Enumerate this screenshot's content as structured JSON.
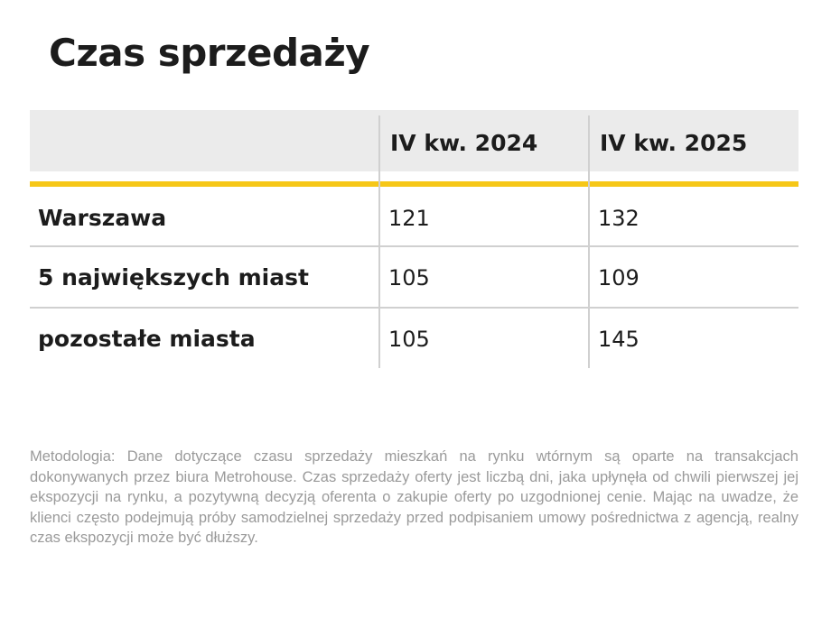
{
  "header": {
    "title": "Czas sprzedaży"
  },
  "table": {
    "columns": [
      "IV kw. 2024",
      "IV kw. 2025"
    ],
    "rows": [
      [
        "Warszawa",
        121,
        132
      ],
      [
        "5 największych miast",
        105,
        109
      ],
      [
        "pozostałe miasta",
        105,
        145
      ]
    ]
  },
  "footnote": "Metodologia: Dane dotyczące czasu sprzedaży mieszkań na rynku wtórnym są oparte na transakcjach dokonywanych przez biura Metrohouse. Czas sprzedaży oferty jest liczbą dni, jaka upłynęła od chwili pierwszej jej ekspozycji na rynku, a pozytywną decyzją oferenta o zakupie oferty po uzgodnionej cenie. Mając na uwadze, że klienci często podejmują próby samodzielnej sprzedaży przed podpisaniem umowy pośrednictwa z agencją, realny czas ekspozycji może być dłuższy."
}
